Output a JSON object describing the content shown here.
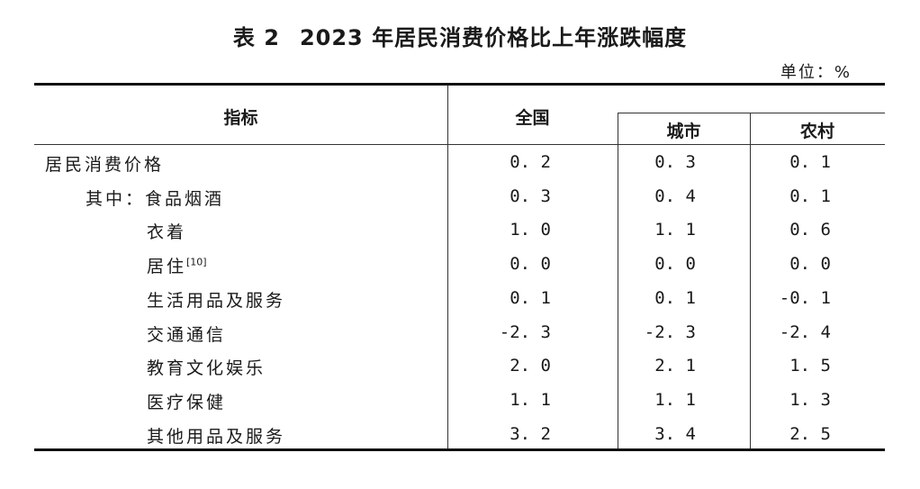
{
  "title": {
    "table_no": "表 2",
    "text": "2023 年居民消费价格比上年涨跌幅度"
  },
  "unit": "单位：%",
  "header": {
    "indicator": "指标",
    "national": "全国",
    "urban": "城市",
    "rural": "农村"
  },
  "rows": [
    {
      "prefix": "",
      "label": "居民消费价格",
      "note": "",
      "indent": 0,
      "national": "0. 2",
      "urban": "0. 3",
      "rural": "0. 1"
    },
    {
      "prefix": "其中：",
      "label": "食品烟酒",
      "note": "",
      "indent": 1,
      "national": "0. 3",
      "urban": "0. 4",
      "rural": "0. 1"
    },
    {
      "prefix": "",
      "label": "衣着",
      "note": "",
      "indent": 2,
      "national": "1. 0",
      "urban": "1. 1",
      "rural": "0. 6"
    },
    {
      "prefix": "",
      "label": "居住",
      "note": "[10]",
      "indent": 2,
      "national": "0. 0",
      "urban": "0. 0",
      "rural": "0. 0"
    },
    {
      "prefix": "",
      "label": "生活用品及服务",
      "note": "",
      "indent": 2,
      "national": "0. 1",
      "urban": "0. 1",
      "rural": "-0. 1"
    },
    {
      "prefix": "",
      "label": "交通通信",
      "note": "",
      "indent": 2,
      "national": "-2. 3",
      "urban": "-2. 3",
      "rural": "-2. 4"
    },
    {
      "prefix": "",
      "label": "教育文化娱乐",
      "note": "",
      "indent": 2,
      "national": "2. 0",
      "urban": "2. 1",
      "rural": "1. 5"
    },
    {
      "prefix": "",
      "label": "医疗保健",
      "note": "",
      "indent": 2,
      "national": "1. 1",
      "urban": "1. 1",
      "rural": "1. 3"
    },
    {
      "prefix": "",
      "label": "其他用品及服务",
      "note": "",
      "indent": 2,
      "national": "3. 2",
      "urban": "3. 4",
      "rural": "2. 5"
    }
  ]
}
